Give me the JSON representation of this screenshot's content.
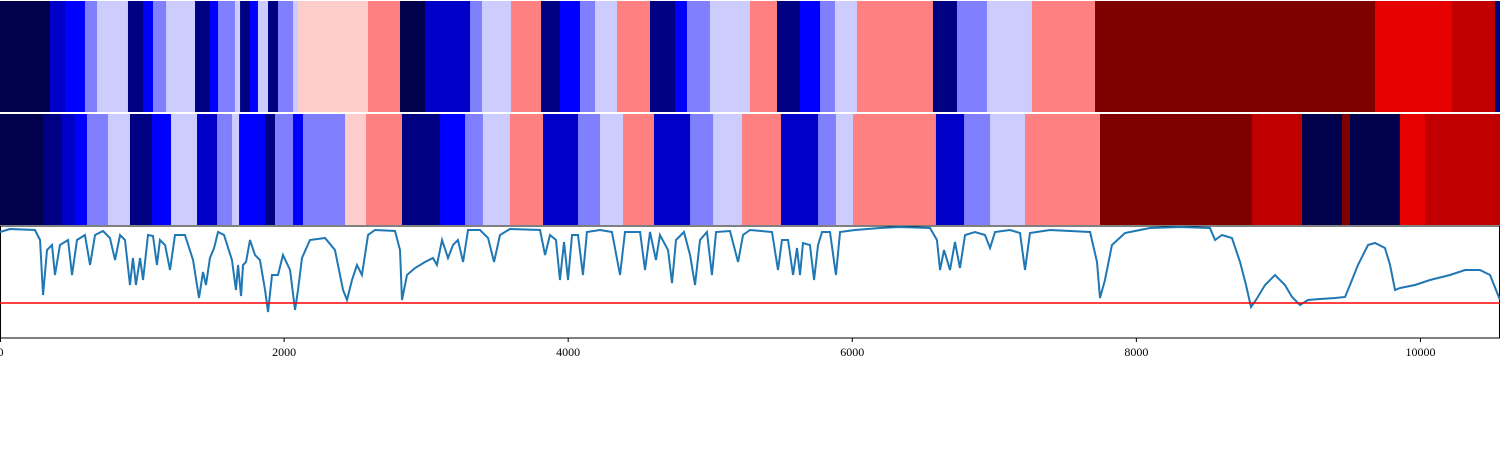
{
  "chart_data": [
    {
      "type": "heatmap",
      "xlim": [
        0,
        10560
      ],
      "vlim": [
        -1,
        1
      ],
      "colormap": [
        "#00004c",
        "#0000ff",
        "#ffffff",
        "#ff0000",
        "#800000"
      ],
      "edges": [
        0,
        352,
        458,
        598,
        683,
        901,
        1007,
        1077,
        1169,
        1373,
        1478,
        1535,
        1654,
        1690,
        1760,
        1816,
        1887,
        1957,
        2063,
        2098,
        2591,
        2816,
        2992,
        3309,
        3393,
        3597,
        3809,
        3942,
        4083,
        4189,
        4344,
        4576,
        4752,
        4836,
        4998,
        5280,
        5470,
        5632,
        5773,
        5878,
        6033,
        6568,
        6737,
        6948,
        7265,
        7709,
        9680,
        10222,
        10525,
        10560
      ],
      "values": [
        -1,
        -0.65,
        -0.5,
        -0.25,
        -0.1,
        -0.85,
        -0.5,
        -0.25,
        -0.1,
        -0.85,
        -0.5,
        -0.25,
        -0.1,
        -0.85,
        -0.5,
        -0.1,
        -0.85,
        -0.25,
        -0.1,
        0.1,
        0.25,
        -1,
        -0.65,
        -0.25,
        -0.1,
        0.25,
        -0.85,
        -0.5,
        -0.25,
        -0.1,
        0.25,
        -0.85,
        -0.5,
        -0.25,
        -0.1,
        0.25,
        -0.85,
        -0.5,
        -0.25,
        -0.1,
        0.25,
        -0.85,
        -0.25,
        -0.1,
        0.25,
        1,
        0.6,
        0.75,
        -0.85
      ]
    },
    {
      "type": "heatmap",
      "xlim": [
        0,
        10560
      ],
      "vlim": [
        -1,
        1
      ],
      "colormap": [
        "#00004c",
        "#0000ff",
        "#ffffff",
        "#ff0000",
        "#800000"
      ],
      "edges": [
        0,
        303,
        436,
        528,
        612,
        760,
        915,
        1070,
        1204,
        1387,
        1528,
        1633,
        1683,
        1866,
        1936,
        2063,
        2133,
        2429,
        2577,
        2830,
        3098,
        3274,
        3400,
        3590,
        3823,
        4069,
        4224,
        4386,
        4604,
        4858,
        5020,
        5224,
        5498,
        5759,
        5885,
        6005,
        6589,
        6787,
        6970,
        7216,
        7744,
        8814,
        9166,
        9448,
        9504,
        9856,
        10032,
        10560
      ],
      "values": [
        -1,
        -0.85,
        -0.65,
        -0.5,
        -0.25,
        -0.1,
        -0.85,
        -0.5,
        -0.1,
        -0.65,
        -0.25,
        -0.1,
        -0.5,
        -0.85,
        -0.25,
        -0.5,
        -0.25,
        0.1,
        0.25,
        -0.85,
        -0.5,
        -0.25,
        -0.1,
        0.25,
        -0.65,
        -0.25,
        -0.1,
        0.25,
        -0.65,
        -0.25,
        -0.1,
        0.25,
        -0.65,
        -0.25,
        -0.1,
        0.25,
        -0.65,
        -0.25,
        -0.1,
        0.25,
        1,
        0.75,
        -1,
        1,
        -1,
        0.6,
        0.75
      ]
    },
    {
      "type": "line",
      "xlim": [
        0,
        10560
      ],
      "ylim": [
        0,
        1.12
      ],
      "xticks": [
        0,
        2000,
        4000,
        6000,
        8000,
        10000
      ],
      "hline": {
        "value": 0.35,
        "color": "#ff0000"
      },
      "x": [
        0,
        70,
        246,
        282,
        303,
        331,
        366,
        387,
        422,
        479,
        507,
        542,
        598,
        634,
        669,
        725,
        774,
        810,
        845,
        880,
        915,
        936,
        957,
        986,
        1007,
        1042,
        1077,
        1105,
        1126,
        1162,
        1197,
        1232,
        1302,
        1359,
        1401,
        1429,
        1450,
        1478,
        1507,
        1535,
        1577,
        1633,
        1661,
        1676,
        1697,
        1711,
        1732,
        1760,
        1795,
        1830,
        1866,
        1887,
        1915,
        1957,
        1992,
        2042,
        2077,
        2098,
        2126,
        2182,
        2288,
        2358,
        2415,
        2443,
        2478,
        2513,
        2548,
        2591,
        2640,
        2781,
        2816,
        2830,
        2865,
        2922,
        2992,
        3048,
        3076,
        3112,
        3154,
        3189,
        3224,
        3260,
        3295,
        3379,
        3436,
        3478,
        3520,
        3590,
        3802,
        3837,
        3872,
        3914,
        3942,
        3971,
        3999,
        4027,
        4069,
        4104,
        4132,
        4224,
        4308,
        4365,
        4400,
        4506,
        4541,
        4576,
        4618,
        4646,
        4703,
        4731,
        4759,
        4815,
        4858,
        4893,
        4928,
        4977,
        5012,
        5041,
        5139,
        5196,
        5231,
        5280,
        5435,
        5477,
        5505,
        5548,
        5583,
        5611,
        5632,
        5653,
        5702,
        5731,
        5759,
        5787,
        5843,
        5885,
        5914,
        6019,
        6195,
        6336,
        6547,
        6596,
        6618,
        6646,
        6688,
        6723,
        6758,
        6794,
        6864,
        6934,
        6970,
        7005,
        7110,
        7181,
        7216,
        7251,
        7392,
        7674,
        7723,
        7744,
        7779,
        7828,
        7920,
        8096,
        8307,
        8518,
        8554,
        8603,
        8673,
        8730,
        8772,
        8807,
        8842,
        8906,
        8976,
        9046,
        9096,
        9152,
        9208,
        9293,
        9398,
        9469,
        9504,
        9560,
        9631,
        9680,
        9750,
        9786,
        9821,
        9856,
        9962,
        10067,
        10208,
        10314,
        10419,
        10490,
        10560
      ],
      "series": [
        {
          "color": "#1f77b4",
          "values": [
            1.06,
            1.09,
            1.08,
            0.98,
            0.43,
            0.88,
            0.93,
            0.63,
            0.93,
            0.98,
            0.63,
            0.98,
            1.03,
            0.73,
            1.03,
            1.07,
            1.0,
            0.78,
            1.03,
            0.98,
            0.53,
            0.8,
            0.53,
            0.8,
            0.58,
            1.03,
            1.02,
            0.73,
            0.98,
            0.93,
            0.68,
            1.03,
            1.03,
            0.78,
            0.4,
            0.66,
            0.53,
            0.8,
            0.9,
            1.06,
            1.03,
            0.78,
            0.48,
            0.73,
            0.42,
            0.73,
            0.76,
            0.98,
            0.83,
            0.78,
            0.48,
            0.26,
            0.63,
            0.63,
            0.83,
            0.68,
            0.28,
            0.48,
            0.8,
            0.98,
            1.0,
            0.88,
            0.48,
            0.38,
            0.58,
            0.73,
            0.63,
            1.03,
            1.08,
            1.07,
            0.88,
            0.38,
            0.63,
            0.7,
            0.76,
            0.8,
            0.73,
            0.98,
            0.8,
            0.93,
            0.98,
            0.76,
            1.08,
            1.08,
            1.0,
            0.76,
            1.03,
            1.09,
            1.08,
            0.83,
            1.03,
            0.98,
            0.58,
            0.96,
            0.58,
            1.03,
            1.03,
            0.63,
            1.06,
            1.08,
            1.06,
            0.63,
            1.06,
            1.06,
            0.68,
            1.06,
            0.78,
            1.03,
            0.88,
            0.55,
            0.98,
            1.06,
            0.83,
            0.53,
            0.98,
            1.06,
            0.63,
            1.06,
            1.07,
            0.76,
            1.03,
            1.08,
            1.06,
            0.68,
            0.98,
            0.98,
            0.63,
            0.9,
            0.63,
            0.95,
            0.93,
            0.58,
            0.93,
            1.06,
            1.06,
            0.63,
            1.06,
            1.08,
            1.1,
            1.11,
            1.1,
            0.98,
            0.68,
            0.88,
            0.68,
            0.96,
            0.7,
            1.03,
            1.06,
            1.03,
            0.9,
            1.06,
            1.08,
            1.05,
            0.68,
            1.05,
            1.08,
            1.06,
            0.76,
            0.4,
            0.58,
            0.93,
            1.05,
            1.1,
            1.11,
            1.1,
            0.98,
            1.03,
            1.0,
            0.76,
            0.53,
            0.31,
            0.38,
            0.53,
            0.63,
            0.53,
            0.41,
            0.33,
            0.38,
            0.39,
            0.4,
            0.41,
            0.53,
            0.73,
            0.93,
            0.95,
            0.9,
            0.73,
            0.48,
            0.5,
            0.53,
            0.58,
            0.63,
            0.68,
            0.68,
            0.63,
            0.38
          ]
        }
      ]
    }
  ]
}
